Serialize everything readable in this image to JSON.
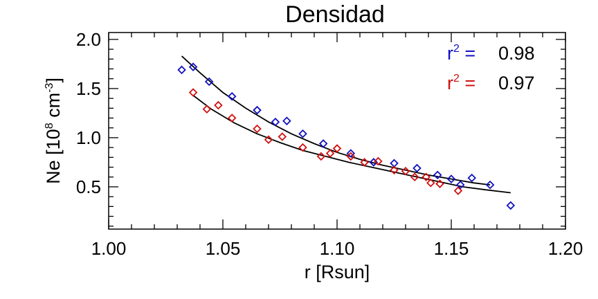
{
  "chart_data": {
    "type": "scatter",
    "title": "Densidad",
    "xlabel": "r [Rsun]",
    "ylabel": {
      "prefix": "Ne [10",
      "exp1": "8",
      "mid": " cm",
      "exp2": "-3",
      "suffix": "]"
    },
    "xlim": [
      1.0,
      1.2
    ],
    "ylim": [
      0.07,
      2.07
    ],
    "x_ticks": [
      "1.00",
      "1.05",
      "1.10",
      "1.15",
      "1.20"
    ],
    "y_ticks": [
      "0.5",
      "1.0",
      "1.5",
      "2.0"
    ],
    "grid": false,
    "series": [
      {
        "color": "#1010c0",
        "marker": "diamond-open",
        "fit_label": {
          "r": "r",
          "exp": "2",
          "eq": " =",
          "value": "0.98"
        },
        "points": [
          [
            1.032,
            1.69
          ],
          [
            1.037,
            1.72
          ],
          [
            1.044,
            1.57
          ],
          [
            1.054,
            1.42
          ],
          [
            1.065,
            1.28
          ],
          [
            1.073,
            1.16
          ],
          [
            1.078,
            1.17
          ],
          [
            1.085,
            1.04
          ],
          [
            1.094,
            0.94
          ],
          [
            1.106,
            0.84
          ],
          [
            1.116,
            0.75
          ],
          [
            1.125,
            0.74
          ],
          [
            1.135,
            0.69
          ],
          [
            1.144,
            0.62
          ],
          [
            1.15,
            0.58
          ],
          [
            1.154,
            0.52
          ],
          [
            1.159,
            0.59
          ],
          [
            1.167,
            0.52
          ],
          [
            1.176,
            0.31
          ]
        ],
        "fit": [
          [
            1.032,
            1.83
          ],
          [
            1.04,
            1.66
          ],
          [
            1.05,
            1.46
          ],
          [
            1.06,
            1.3
          ],
          [
            1.07,
            1.16
          ],
          [
            1.08,
            1.04
          ],
          [
            1.09,
            0.94
          ],
          [
            1.1,
            0.85
          ],
          [
            1.11,
            0.78
          ],
          [
            1.12,
            0.72
          ],
          [
            1.13,
            0.67
          ],
          [
            1.14,
            0.62
          ],
          [
            1.15,
            0.58
          ],
          [
            1.16,
            0.54
          ],
          [
            1.167,
            0.52
          ]
        ]
      },
      {
        "color": "#d01010",
        "marker": "diamond-open",
        "fit_label": {
          "r": "r",
          "exp": "2",
          "eq": " =",
          "value": "0.97"
        },
        "points": [
          [
            1.037,
            1.46
          ],
          [
            1.043,
            1.29
          ],
          [
            1.048,
            1.33
          ],
          [
            1.054,
            1.2
          ],
          [
            1.065,
            1.09
          ],
          [
            1.07,
            0.98
          ],
          [
            1.076,
            1.01
          ],
          [
            1.085,
            0.9
          ],
          [
            1.093,
            0.81
          ],
          [
            1.097,
            0.84
          ],
          [
            1.1,
            0.89
          ],
          [
            1.106,
            0.81
          ],
          [
            1.112,
            0.75
          ],
          [
            1.118,
            0.76
          ],
          [
            1.125,
            0.67
          ],
          [
            1.13,
            0.66
          ],
          [
            1.134,
            0.6
          ],
          [
            1.139,
            0.6
          ],
          [
            1.141,
            0.54
          ],
          [
            1.145,
            0.53
          ],
          [
            1.153,
            0.46
          ]
        ],
        "fit": [
          [
            1.037,
            1.43
          ],
          [
            1.045,
            1.29
          ],
          [
            1.055,
            1.15
          ],
          [
            1.065,
            1.04
          ],
          [
            1.075,
            0.95
          ],
          [
            1.085,
            0.87
          ],
          [
            1.095,
            0.81
          ],
          [
            1.105,
            0.75
          ],
          [
            1.115,
            0.7
          ],
          [
            1.125,
            0.65
          ],
          [
            1.135,
            0.6
          ],
          [
            1.145,
            0.55
          ],
          [
            1.155,
            0.5
          ],
          [
            1.165,
            0.47
          ],
          [
            1.176,
            0.44
          ]
        ]
      }
    ]
  }
}
